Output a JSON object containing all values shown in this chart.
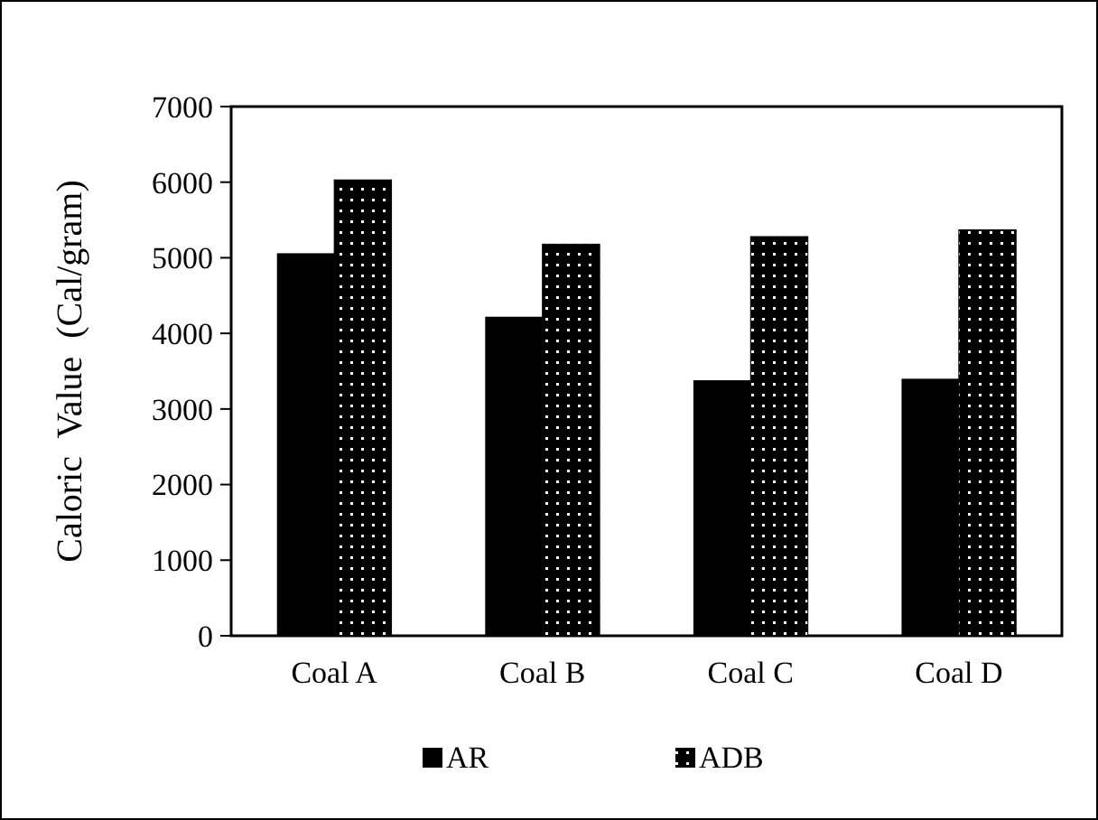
{
  "chart_data": {
    "type": "bar",
    "ylabel": "Caloric  Value  (Cal/gram)",
    "categories": [
      "Coal A",
      "Coal B",
      "Coal C",
      "Coal D"
    ],
    "series": [
      {
        "name": "AR",
        "color": "#000000",
        "values": [
          5060,
          4220,
          3380,
          3400
        ]
      },
      {
        "name": "ADB",
        "color": "#000000",
        "values": [
          6030,
          5180,
          5280,
          5370
        ]
      }
    ],
    "ylim": [
      0,
      7000
    ],
    "yticks": [
      0,
      1000,
      2000,
      3000,
      4000,
      5000,
      6000,
      7000
    ],
    "grid": false,
    "legend": "bottom"
  }
}
